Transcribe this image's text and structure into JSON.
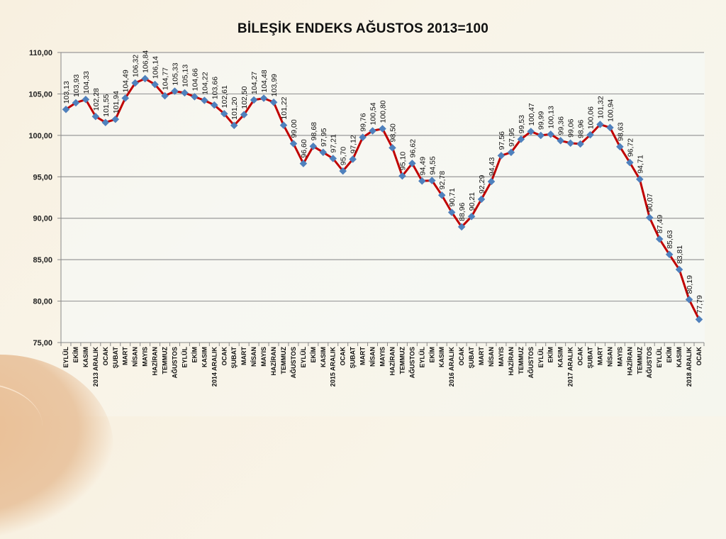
{
  "chart_data": {
    "type": "line",
    "title": "BİLEŞİK ENDEKS AĞUSTOS 2013=100",
    "xlabel": "",
    "ylabel": "",
    "ylim": [
      75,
      110
    ],
    "yticks": [
      "75,00",
      "80,00",
      "85,00",
      "90,00",
      "95,00",
      "100,00",
      "105,00",
      "110,00"
    ],
    "grid": true,
    "legend": null,
    "colors": {
      "line": "#c00000",
      "marker": "#4f81bd",
      "grid": "#9a9a9a",
      "axis": "#888888"
    },
    "categories": [
      "EYLÜL",
      "EKİM",
      "KASIM",
      "2013 ARALIK",
      "OCAK",
      "ŞUBAT",
      "MART",
      "NİSAN",
      "MAYIS",
      "HAZİRAN",
      "TEMMUZ",
      "AĞUSTOS",
      "EYLÜL",
      "EKİM",
      "KASIM",
      "2014 ARALIK",
      "OCAK",
      "ŞUBAT",
      "MART",
      "NİSAN",
      "MAYIS",
      "HAZİRAN",
      "TEMMUZ",
      "AĞUSTOS",
      "EYLÜL",
      "EKİM",
      "KASIM",
      "2015 ARALIK",
      "OCAK",
      "ŞUBAT",
      "MART",
      "NİSAN",
      "MAYIS",
      "HAZİRAN",
      "TEMMUZ",
      "AĞUSTOS",
      "EYLÜL",
      "EKİM",
      "KASIM",
      "2016 ARALIK",
      "OCAK",
      "ŞUBAT",
      "MART",
      "NİSAN",
      "MAYIS",
      "HAZİRAN",
      "TEMMUZ",
      "AĞUSTOS",
      "EYLÜL",
      "EKİM",
      "KASIM",
      "2017 ARALIK",
      "OCAK",
      "ŞUBAT",
      "MART",
      "NİSAN",
      "MAYIS",
      "HAZİRAN",
      "TEMMUZ",
      "AĞUSTOS",
      "EYLÜL",
      "EKİM",
      "KASIM",
      "2018 ARALIK",
      "OCAK"
    ],
    "series": [
      {
        "name": "Bileşik Endeks",
        "values": [
          103.13,
          103.93,
          104.33,
          102.28,
          101.55,
          101.94,
          104.49,
          106.32,
          106.84,
          106.14,
          104.77,
          105.33,
          105.13,
          104.66,
          104.22,
          103.66,
          102.61,
          101.2,
          102.5,
          104.27,
          104.48,
          103.99,
          101.22,
          99.0,
          96.6,
          98.68,
          97.95,
          97.21,
          95.7,
          97.12,
          99.76,
          100.54,
          100.8,
          98.5,
          95.1,
          96.62,
          94.49,
          94.55,
          92.78,
          90.71,
          88.96,
          90.21,
          92.29,
          94.43,
          97.56,
          97.95,
          99.53,
          100.47,
          99.99,
          100.13,
          99.36,
          99.06,
          98.96,
          100.06,
          101.32,
          100.94,
          98.63,
          96.72,
          94.71,
          90.07,
          87.49,
          85.63,
          83.81,
          80.19,
          77.79
        ],
        "labels": [
          "103,13",
          "103,93",
          "104,33",
          "102,28",
          "101,55",
          "101,94",
          "104,49",
          "106,32",
          "106,84",
          "106,14",
          "104,77",
          "105,33",
          "105,13",
          "104,66",
          "104,22",
          "103,66",
          "102,61",
          "101,20",
          "102,50",
          "104,27",
          "104,48",
          "103,99",
          "101,22",
          "99,00",
          "96,60",
          "98,68",
          "97,95",
          "97,21",
          "95,70",
          "97,12",
          "99,76",
          "100,54",
          "100,80",
          "98,50",
          "95,10",
          "96,62",
          "94,49",
          "94,55",
          "92,78",
          "90,71",
          "88,96",
          "90,21",
          "92,29",
          "94,43",
          "97,56",
          "97,95",
          "99,53",
          "100,47",
          "99,99",
          "100,13",
          "99,36",
          "99,06",
          "98,96",
          "100,06",
          "101,32",
          "100,94",
          "98,63",
          "96,72",
          "94,71",
          "90,07",
          "87,49",
          "85,63",
          "83,81",
          "80,19",
          "77,79"
        ]
      }
    ]
  }
}
